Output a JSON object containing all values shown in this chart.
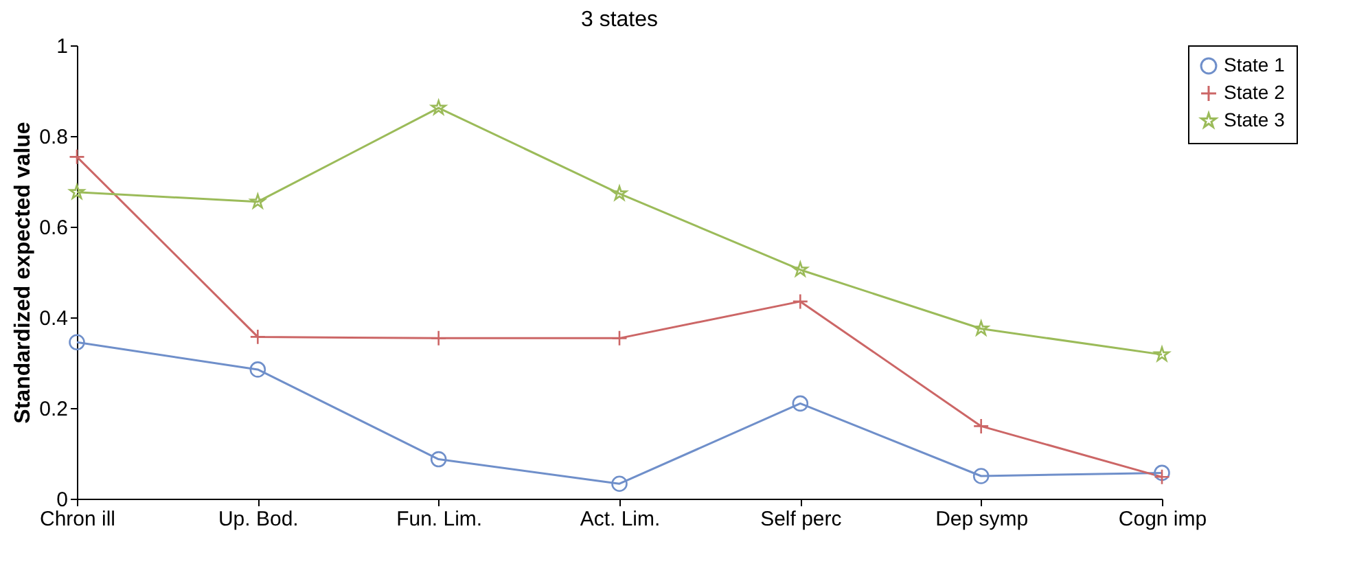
{
  "chart_data": {
    "type": "line",
    "title": "3 states",
    "ylabel": "Standardized expected value",
    "categories": [
      "Chron ill",
      "Up. Bod.",
      "Fun. Lim.",
      "Act. Lim.",
      "Self perc",
      "Dep symp",
      "Cogn imp"
    ],
    "ylim": [
      0,
      1
    ],
    "yticks": [
      0,
      0.2,
      0.4,
      0.6,
      0.8,
      1
    ],
    "grid": false,
    "legend": "right",
    "series": [
      {
        "name": "State 1",
        "color": "#6f8fca",
        "marker": "circle",
        "values": [
          0.345,
          0.285,
          0.087,
          0.033,
          0.21,
          0.05,
          0.057
        ]
      },
      {
        "name": "State 2",
        "color": "#cc6666",
        "marker": "cross",
        "values": [
          0.754,
          0.357,
          0.354,
          0.354,
          0.435,
          0.16,
          0.048
        ]
      },
      {
        "name": "State 3",
        "color": "#9bbb59",
        "marker": "star",
        "values": [
          0.676,
          0.655,
          0.862,
          0.673,
          0.505,
          0.375,
          0.318
        ]
      }
    ]
  }
}
